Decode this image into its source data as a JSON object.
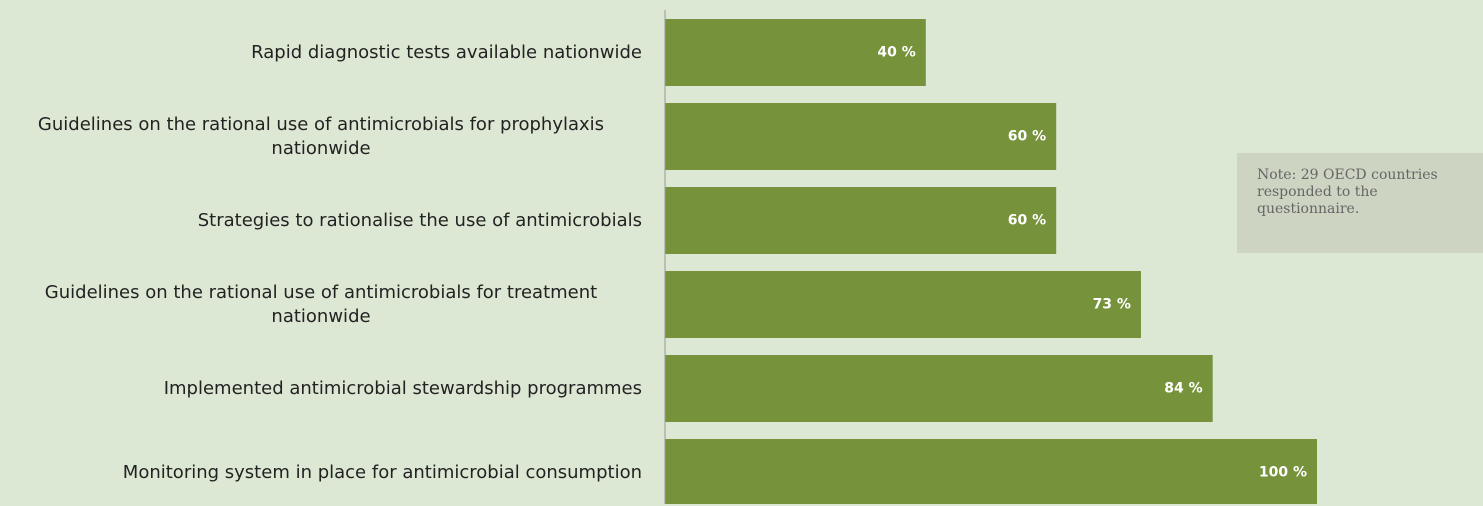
{
  "chart_data": {
    "type": "bar",
    "orientation": "horizontal",
    "categories": [
      "Rapid diagnostic tests available nationwide",
      "Guidelines on the rational use of antimicrobials for prophylaxis nationwide",
      "Strategies to rationalise the use of antimicrobials",
      "Guidelines on the rational use of antimicrobials for treatment nationwide",
      "Implemented antimicrobial stewardship programmes",
      "Monitoring system in place for antimicrobial consumption"
    ],
    "values": [
      40,
      60,
      60,
      73,
      84,
      100
    ],
    "value_labels": [
      "40 %",
      "60 %",
      "60 %",
      "73 %",
      "84 %",
      "100 %"
    ],
    "color": "#76933c",
    "xlim": [
      0,
      100
    ],
    "annotation": "Note: 29 OECD countries responded to the questionnaire."
  }
}
